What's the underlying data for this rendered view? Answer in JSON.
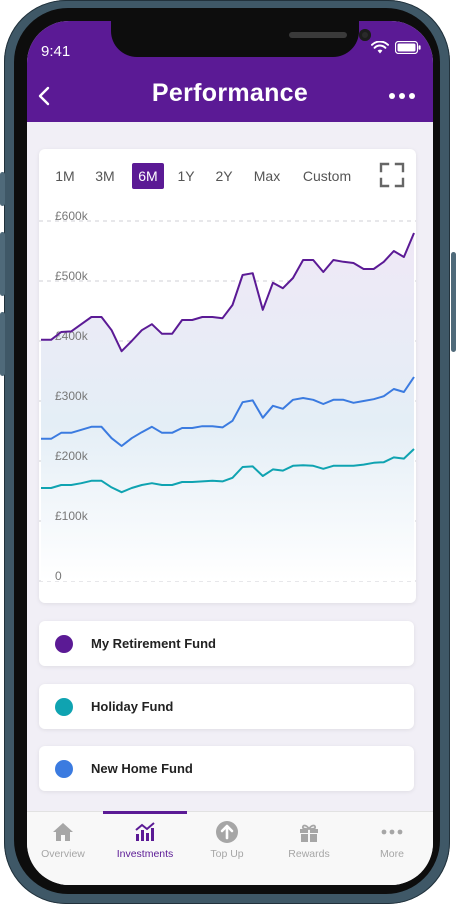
{
  "status_bar": {
    "time": "9:41"
  },
  "header": {
    "title": "Performance"
  },
  "range_tabs": [
    {
      "label": "1M",
      "active": false
    },
    {
      "label": "3M",
      "active": false
    },
    {
      "label": "6M",
      "active": true
    },
    {
      "label": "1Y",
      "active": false
    },
    {
      "label": "2Y",
      "active": false
    },
    {
      "label": "Max",
      "active": false
    },
    {
      "label": "Custom",
      "active": false
    }
  ],
  "chart_data": {
    "type": "line",
    "ylim": [
      0,
      600000
    ],
    "y_ticks": [
      "0",
      "£100k",
      "£200k",
      "£300k",
      "£400k",
      "£500k",
      "£600k"
    ],
    "grid": "horizontal dashed",
    "series": [
      {
        "name": "My Retirement Fund",
        "color": "#5b1a95",
        "values": [
          402000,
          402000,
          415000,
          416000,
          428000,
          440000,
          440000,
          418000,
          383000,
          400000,
          418000,
          428000,
          412000,
          412000,
          435000,
          435000,
          440000,
          440000,
          438000,
          460000,
          510000,
          513000,
          452000,
          497000,
          488000,
          505000,
          535000,
          535000,
          515000,
          535000,
          532000,
          530000,
          520000,
          520000,
          532000,
          550000,
          540000,
          580000
        ]
      },
      {
        "name": "New Home Fund",
        "color": "#3b7be0",
        "values": [
          237000,
          237000,
          247000,
          247000,
          252000,
          257000,
          257000,
          238000,
          225000,
          238000,
          248000,
          257000,
          247000,
          247000,
          255000,
          255000,
          258000,
          258000,
          256000,
          267000,
          298000,
          301000,
          272000,
          292000,
          287000,
          302000,
          305000,
          302000,
          295000,
          302000,
          302000,
          297000,
          300000,
          303000,
          308000,
          320000,
          315000,
          340000
        ]
      },
      {
        "name": "Holiday Fund",
        "color": "#0fa3b1",
        "values": [
          155000,
          155000,
          160000,
          160000,
          163000,
          167000,
          167000,
          156000,
          148000,
          155000,
          160000,
          163000,
          160000,
          160000,
          165000,
          165000,
          166000,
          167000,
          166000,
          172000,
          190000,
          191000,
          175000,
          186000,
          184000,
          192000,
          193000,
          192000,
          187000,
          192000,
          192000,
          192000,
          194000,
          197000,
          198000,
          206000,
          204000,
          220000
        ]
      }
    ]
  },
  "funds": [
    {
      "label": "My Retirement Fund",
      "color": "#5b1a95"
    },
    {
      "label": "Holiday Fund",
      "color": "#0fa3b1"
    },
    {
      "label": "New Home Fund",
      "color": "#3b7be0"
    }
  ],
  "tabbar": [
    {
      "label": "Overview",
      "icon": "home-icon",
      "active": false
    },
    {
      "label": "Investments",
      "icon": "bar-chart-icon",
      "active": true
    },
    {
      "label": "Top Up",
      "icon": "arrow-up-circle-icon",
      "active": false
    },
    {
      "label": "Rewards",
      "icon": "gift-icon",
      "active": false
    },
    {
      "label": "More",
      "icon": "more-dots-icon",
      "active": false
    }
  ]
}
